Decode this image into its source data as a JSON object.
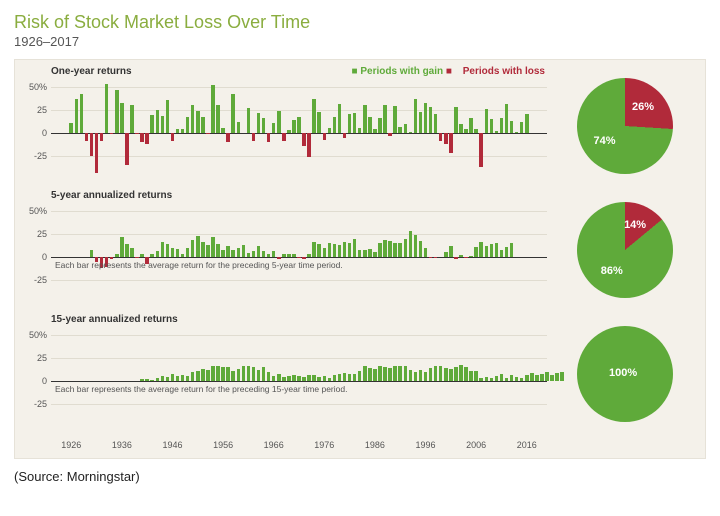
{
  "title": "Risk of Stock Market Loss Over Time",
  "subtitle": "1926–2017",
  "source": "(Source: Morningstar)",
  "colors": {
    "gain": "#5faa3a",
    "loss": "#b12a3a",
    "panel_bg": "#f4f1ea",
    "grid": "#e0dcd0",
    "axis": "#333333",
    "title": "#8aad3f"
  },
  "legend": {
    "gain": "Periods with gain",
    "loss": "Periods with loss"
  },
  "y": {
    "min": -40,
    "max": 60,
    "ticks": [
      -25,
      0,
      25,
      "50%"
    ],
    "tick_vals": [
      -25,
      0,
      25,
      50
    ]
  },
  "x": {
    "start": 1922,
    "end": 2020,
    "ticks": [
      1926,
      1936,
      1946,
      1956,
      1966,
      1976,
      1986,
      1996,
      2006,
      2016
    ]
  },
  "charts": [
    {
      "label": "One-year returns",
      "note": "",
      "pie": {
        "gain": 74,
        "loss": 26,
        "gain_label": "74%",
        "loss_label": "26%"
      },
      "start_year": 1926,
      "values": [
        11,
        37,
        43,
        -8,
        -25,
        -43,
        -8,
        54,
        -1,
        47,
        33,
        -35,
        31,
        -1,
        -10,
        -12,
        20,
        25,
        19,
        36,
        -8,
        5,
        5,
        18,
        31,
        24,
        18,
        -1,
        52,
        31,
        6,
        -10,
        43,
        12,
        0,
        27,
        -9,
        22,
        16,
        -10,
        11,
        24,
        -8,
        4,
        14,
        18,
        -14,
        -26,
        37,
        23,
        -7,
        6,
        18,
        32,
        -5,
        21,
        22,
        6,
        31,
        18,
        5,
        16,
        31,
        -3,
        30,
        7,
        10,
        1,
        37,
        23,
        33,
        28,
        21,
        -9,
        -12,
        -22,
        28,
        10,
        5,
        16,
        5,
        -37,
        26,
        15,
        2,
        16,
        32,
        13,
        1,
        12,
        21
      ]
    },
    {
      "label": "5-year annualized returns",
      "note": "Each bar represents the average return for the preceding 5-year time period.",
      "pie": {
        "gain": 86,
        "loss": 14,
        "gain_label": "86%",
        "loss_label": "14%"
      },
      "start_year": 1930,
      "values": [
        8,
        -5,
        -12,
        -11,
        -2,
        3,
        22,
        14,
        10,
        -1,
        4,
        -7,
        4,
        7,
        17,
        14,
        10,
        9,
        3,
        10,
        19,
        23,
        17,
        13,
        22,
        14,
        8,
        12,
        8,
        10,
        13,
        5,
        7,
        12,
        7,
        4,
        7,
        -2,
        3,
        3,
        4,
        -1,
        -2,
        4,
        16,
        14,
        10,
        15,
        14,
        13,
        17,
        15,
        20,
        8,
        8,
        9,
        6,
        15,
        19,
        18,
        15,
        15,
        20,
        28,
        24,
        18,
        10,
        -1,
        -1,
        0,
        6,
        12,
        -2,
        2,
        -1,
        1,
        11,
        17,
        12,
        14,
        15,
        8,
        11,
        15
      ]
    },
    {
      "label": "15-year annualized returns",
      "note": "Each bar represents the average return for the preceding 15-year time period.",
      "pie": {
        "gain": 100,
        "loss": 0,
        "gain_label": "100%",
        "loss_label": ""
      },
      "start_year": 1940,
      "values": [
        2,
        2,
        1,
        3,
        6,
        5,
        8,
        6,
        7,
        6,
        10,
        11,
        13,
        12,
        17,
        16,
        15,
        15,
        11,
        13,
        16,
        16,
        15,
        12,
        15,
        10,
        6,
        8,
        5,
        6,
        7,
        6,
        5,
        7,
        7,
        5,
        6,
        4,
        7,
        8,
        9,
        8,
        8,
        11,
        16,
        14,
        13,
        16,
        15,
        14,
        17,
        16,
        17,
        12,
        10,
        12,
        10,
        14,
        17,
        16,
        14,
        13,
        15,
        18,
        15,
        11,
        11,
        4,
        5,
        4,
        6,
        8,
        4,
        7,
        5,
        4,
        7,
        9,
        7,
        8,
        10,
        7,
        9,
        10
      ]
    }
  ]
}
